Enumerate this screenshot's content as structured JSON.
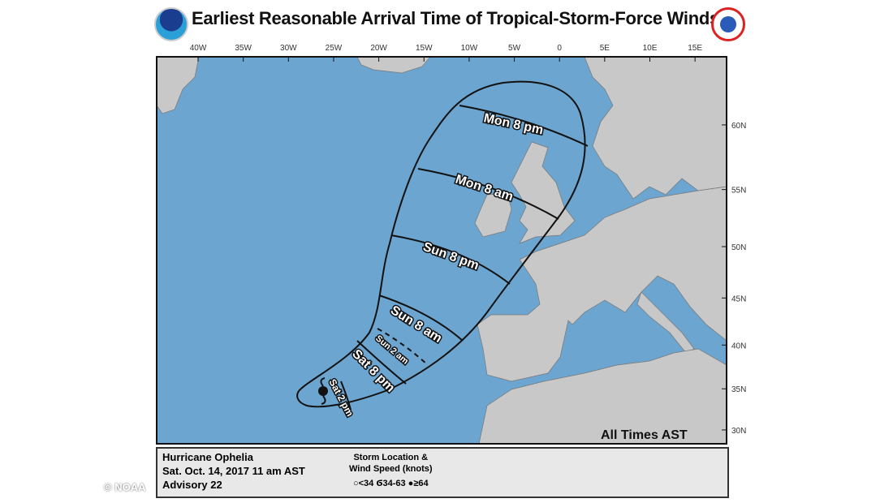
{
  "header": {
    "title": "Earliest Reasonable Arrival Time of Tropical-Storm-Force Winds",
    "left_logo": "NOAA logo",
    "right_logo": "National Weather Service logo"
  },
  "map": {
    "lon_ticks": [
      {
        "lon": -40,
        "label": "40W"
      },
      {
        "lon": -35,
        "label": "35W"
      },
      {
        "lon": -30,
        "label": "30W"
      },
      {
        "lon": -25,
        "label": "25W"
      },
      {
        "lon": -20,
        "label": "20W"
      },
      {
        "lon": -15,
        "label": "15W"
      },
      {
        "lon": -10,
        "label": "10W"
      },
      {
        "lon": -5,
        "label": "5W"
      },
      {
        "lon": 0,
        "label": "0"
      },
      {
        "lon": 5,
        "label": "5E"
      },
      {
        "lon": 10,
        "label": "10E"
      },
      {
        "lon": 15,
        "label": "15E"
      }
    ],
    "lat_ticks": [
      {
        "lat": 60,
        "label": "60N"
      },
      {
        "lat": 55,
        "label": "55N"
      },
      {
        "lat": 50,
        "label": "50N"
      },
      {
        "lat": 45,
        "label": "45N"
      },
      {
        "lat": 40,
        "label": "40N"
      },
      {
        "lat": 35,
        "label": "35N"
      },
      {
        "lat": 30,
        "label": "30N"
      }
    ],
    "isochrones": [
      "Mon 8 pm",
      "Mon 8 am",
      "Sun 8 pm",
      "Sun 8 am",
      "Sun 2 am",
      "Sat 8 pm",
      "Sat 2 pm"
    ],
    "time_zone_note": "All Times AST",
    "colors": {
      "ocean": "#6ca5cf",
      "land": "#c8c8c8",
      "contour": "#111111"
    }
  },
  "legend": {
    "storm": "Hurricane Ophelia",
    "issued": "Sat. Oct. 14, 2017  11 am AST",
    "advisory": "Advisory 22",
    "key_title_1": "Storm Location &",
    "key_title_2": "Wind Speed (knots)",
    "key_items": [
      "<34",
      "34-63",
      "≥64"
    ]
  },
  "watermark": "© NOAA"
}
